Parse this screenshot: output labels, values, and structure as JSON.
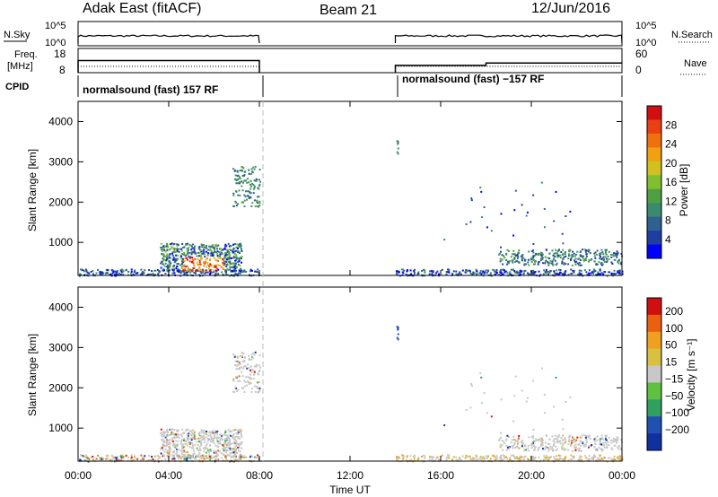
{
  "header": {
    "left": "Adak East (fitACF)",
    "center": "Beam 21",
    "right": "12/Jun/2016"
  },
  "labels": {
    "nsky": "N.Sky",
    "nsearch": "N.Search",
    "freq": "Freq.",
    "freq_unit": "[MHz]",
    "nave": "Nave",
    "cpid": "CPID",
    "xlabel": "Time UT"
  },
  "cpid_text": [
    "normalsound (fast) 157 RF",
    "normalsound (fast) −157 RF"
  ],
  "colors": {
    "power": [
      "#0000ff",
      "#1f3fa0",
      "#2f6090",
      "#3a8a70",
      "#4fa040",
      "#80c030",
      "#d0c020",
      "#f0a010",
      "#f07010",
      "#e84010",
      "#d01010"
    ],
    "velocity": [
      "#1030a0",
      "#2050b0",
      "#30a060",
      "#60c040",
      "#c8c8c8",
      "#d8c040",
      "#f0a020",
      "#e86010",
      "#d01010"
    ]
  },
  "chart_data": [
    {
      "type": "line",
      "name": "noise",
      "ylim_labels": [
        "10^0",
        "10^5"
      ],
      "right_ylim_labels": [
        "10^0",
        "10^5"
      ],
      "segments": [
        [
          "00:00",
          "08:00"
        ],
        [
          "14:00",
          "24:00"
        ]
      ]
    },
    {
      "type": "line",
      "name": "frequency",
      "yticks_left": [
        "8",
        "18"
      ],
      "yticks_right": [
        "0",
        "60"
      ],
      "series": [
        {
          "name": "Freq.",
          "x": [
            0,
            8,
            14,
            18,
            24
          ],
          "values": [
            13,
            13,
            11,
            12,
            12
          ]
        },
        {
          "name": "Nave",
          "x": [
            0,
            8,
            14,
            24
          ],
          "values": [
            10,
            10,
            10,
            10
          ]
        }
      ]
    },
    {
      "type": "heatmap",
      "name": "power",
      "ylabel": "Slant Range [km]",
      "colorbar_label": "Power [dB]",
      "colorbar_ticks": [
        "4",
        "8",
        "12",
        "16",
        "20",
        "24",
        "28"
      ],
      "yticks": [
        "1000",
        "2000",
        "3000",
        "4000"
      ],
      "xlim_hours": [
        0,
        24
      ],
      "ylim_km": [
        180,
        4500
      ]
    },
    {
      "type": "heatmap",
      "name": "velocity",
      "ylabel": "Slant Range [km]",
      "colorbar_label": "Velocity [m s⁻¹]",
      "colorbar_ticks": [
        "200",
        "100",
        "50",
        "15",
        "−15",
        "−50",
        "−100",
        "−200"
      ],
      "yticks": [
        "1000",
        "2000",
        "3000",
        "4000"
      ],
      "xticks": [
        "00:00",
        "04:00",
        "08:00",
        "12:00",
        "16:00",
        "20:00",
        "00:00"
      ],
      "xlim_hours": [
        0,
        24
      ],
      "ylim_km": [
        180,
        4500
      ]
    }
  ]
}
